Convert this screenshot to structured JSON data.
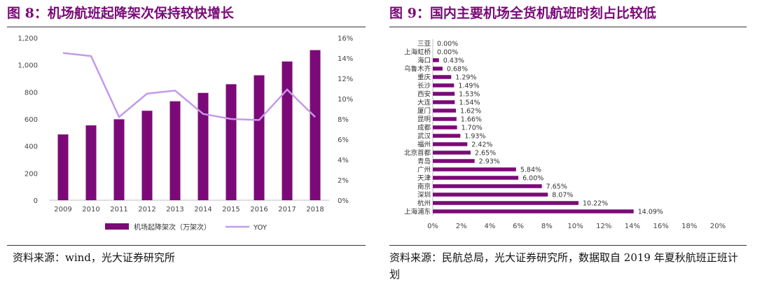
{
  "fig8": {
    "title": "图 8：机场航班起降架次保持较快增长",
    "source": "资料来源：wind，光大证券研究所",
    "chart_data": {
      "type": "bar+line",
      "categories": [
        "2009",
        "2010",
        "2011",
        "2012",
        "2013",
        "2014",
        "2015",
        "2016",
        "2017",
        "2018"
      ],
      "series": [
        {
          "name": "机场起降架次（万架次）",
          "type": "bar",
          "axis": "left",
          "color": "#7b0a78",
          "values": [
            486,
            553,
            598,
            661,
            731,
            793,
            857,
            923,
            1025,
            1109
          ]
        },
        {
          "name": "YOY",
          "type": "line",
          "axis": "right",
          "color": "#c39ae8",
          "values": [
            14.5,
            14.2,
            8.2,
            10.5,
            10.8,
            8.5,
            8.0,
            7.9,
            10.9,
            8.2
          ]
        }
      ],
      "left_axis": {
        "ticks": [
          "0",
          "200",
          "400",
          "600",
          "800",
          "1,000",
          "1,200"
        ],
        "ylim": [
          0,
          1200
        ]
      },
      "right_axis": {
        "ticks": [
          "0%",
          "2%",
          "4%",
          "6%",
          "8%",
          "10%",
          "12%",
          "14%",
          "16%"
        ],
        "ylim": [
          0,
          16
        ]
      },
      "legend": "bottom",
      "grid": false
    }
  },
  "fig9": {
    "title": "图 9：国内主要机场全货机航班时刻占比较低",
    "source": "资料来源：民航总局，光大证券研究所，数据取自 2019 年夏秋航班正班计划",
    "chart_data": {
      "type": "bar",
      "orientation": "horizontal",
      "color": "#7b0a78",
      "categories": [
        "三亚",
        "上海虹桥",
        "海口",
        "乌鲁木齐",
        "重庆",
        "长沙",
        "西安",
        "大连",
        "厦门",
        "昆明",
        "成都",
        "武汉",
        "福州",
        "北京首都",
        "青岛",
        "广州",
        "天津",
        "南京",
        "深圳",
        "杭州",
        "上海浦东"
      ],
      "values": [
        0.0,
        0.0,
        0.43,
        0.68,
        1.29,
        1.49,
        1.53,
        1.54,
        1.62,
        1.66,
        1.7,
        1.93,
        2.42,
        2.65,
        2.93,
        5.84,
        6.0,
        7.65,
        8.07,
        10.22,
        14.09
      ],
      "labels": [
        "0.00%",
        "0.00%",
        "0.43%",
        "0.68%",
        "1.29%",
        "1.49%",
        "1.53%",
        "1.54%",
        "1.62%",
        "1.66%",
        "1.70%",
        "1.93%",
        "2.42%",
        "2.65%",
        "2.93%",
        "5.84%",
        "6.00%",
        "7.65%",
        "8.07%",
        "10.22%",
        "14.09%"
      ],
      "x_axis": {
        "ticks": [
          "0%",
          "2%",
          "4%",
          "6%",
          "8%",
          "10%",
          "12%",
          "14%",
          "16%",
          "18%",
          "20%"
        ],
        "xlim": [
          0,
          20
        ]
      },
      "grid": false
    }
  }
}
